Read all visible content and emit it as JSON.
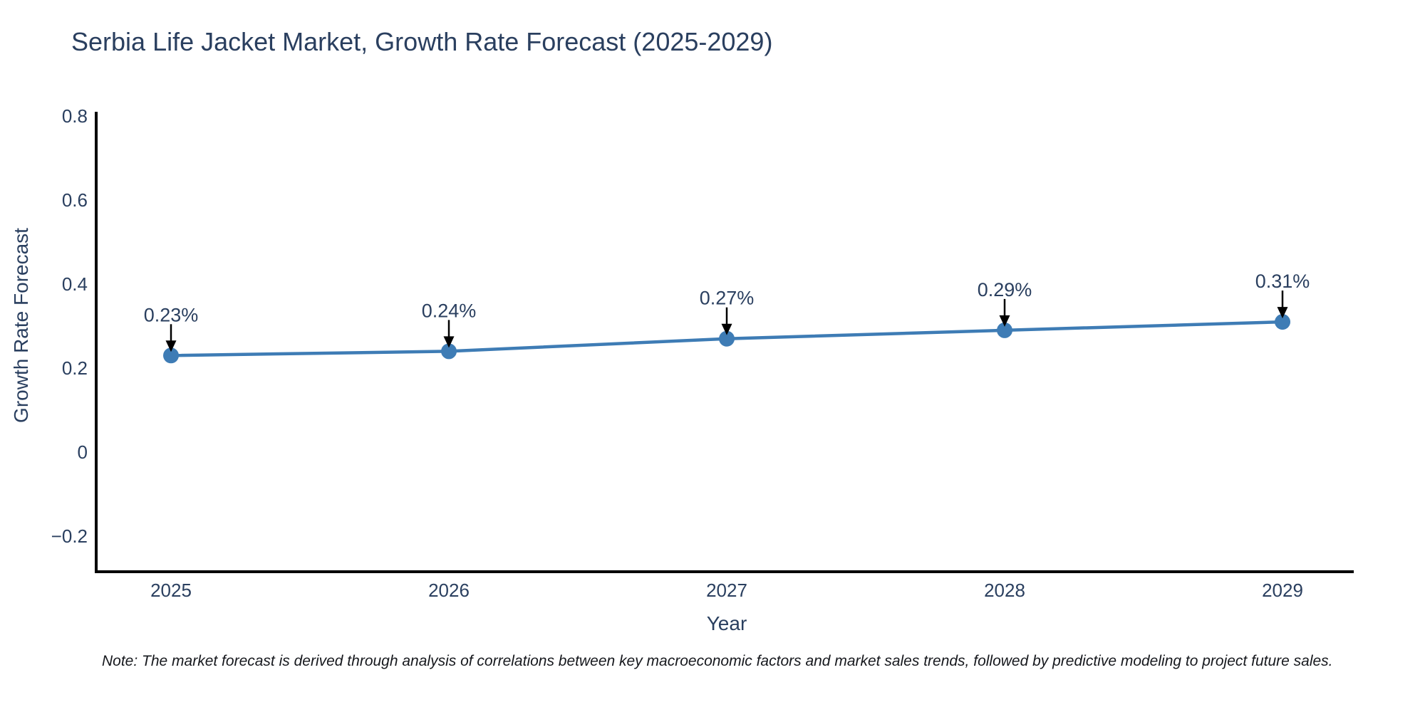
{
  "title": "Serbia Life Jacket Market, Growth Rate Forecast (2025-2029)",
  "note": "Note: The market forecast is derived through analysis of correlations between key macroeconomic factors and market sales trends, followed by predictive modeling to project future sales.",
  "colors": {
    "line": "#3e7cb5",
    "marker": "#3e7cb5",
    "axis": "#000000",
    "arrow": "#000000",
    "text": "#2a3f5f",
    "note_text": "#16181d",
    "background": "#ffffff"
  },
  "chart_data": {
    "type": "line",
    "title": "Serbia Life Jacket Market, Growth Rate Forecast (2025-2029)",
    "xlabel": "Year",
    "ylabel": "Growth Rate Forecast",
    "x": [
      "2025",
      "2026",
      "2027",
      "2028",
      "2029"
    ],
    "values": [
      0.23,
      0.24,
      0.27,
      0.29,
      0.31
    ],
    "point_labels": [
      "0.23%",
      "0.24%",
      "0.27%",
      "0.29%",
      "0.31%"
    ],
    "ytick_values": [
      0.8,
      0.6,
      0.4,
      0.2,
      0,
      -0.2
    ],
    "ytick_labels": [
      "0.8",
      "0.6",
      "0.4",
      "0.2",
      "0",
      "−0.2"
    ],
    "ylim": [
      -0.28,
      0.8
    ],
    "grid": false,
    "legend": "none",
    "annotations_have_arrows": true
  }
}
